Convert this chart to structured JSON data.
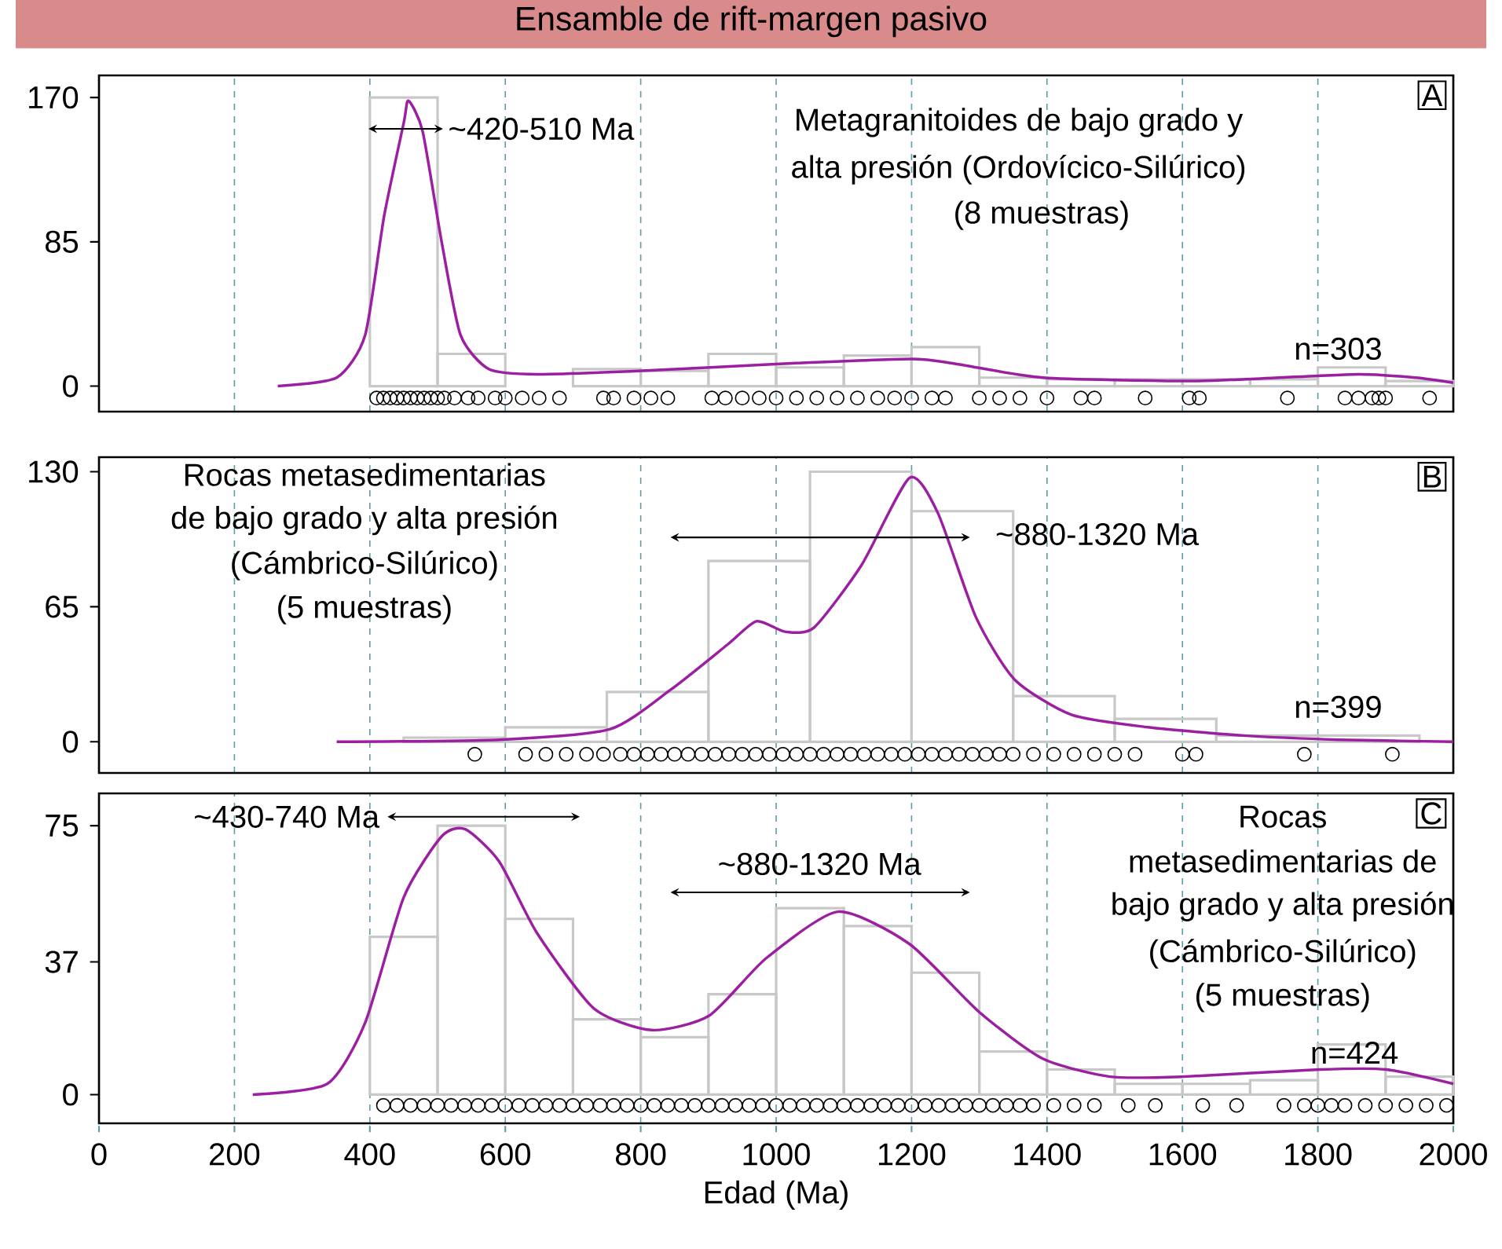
{
  "chart_data": [
    {
      "type": "histogram",
      "title": "Ensamble de rift-margen pasivo",
      "color": "#c8c8c8",
      "bins": [
        400,
        500,
        600,
        700,
        800,
        900,
        1000,
        1100,
        1200,
        1300,
        1400,
        1500,
        1600,
        1700,
        1800,
        1900,
        2000
      ],
      "values": [
        170,
        19,
        0,
        10,
        9,
        19,
        11,
        18,
        23,
        5,
        4,
        4,
        4,
        4,
        11,
        3
      ],
      "series": [
        {
          "type": "line",
          "color": "#9b1fa0",
          "x": [
            264,
            351,
            393,
            421,
            450,
            457,
            478,
            506,
            534,
            576,
            647,
            802,
            999,
            1199,
            1267,
            1394,
            1601,
            1690,
            1859,
            1944,
            2000
          ],
          "values": [
            0,
            5,
            30,
            100,
            155,
            168,
            150,
            85,
            30,
            10,
            7,
            9,
            13,
            16,
            13,
            5,
            3,
            4,
            7,
            5,
            2
          ]
        },
        {
          "type": "scatter",
          "color": "#000000",
          "x": [
            410,
            420,
            430,
            440,
            450,
            460,
            470,
            480,
            490,
            500,
            510,
            525,
            545,
            560,
            585,
            600,
            625,
            650,
            680,
            745,
            760,
            790,
            815,
            840,
            905,
            925,
            950,
            975,
            1000,
            1030,
            1060,
            1090,
            1120,
            1150,
            1175,
            1200,
            1230,
            1250,
            1300,
            1330,
            1360,
            1400,
            1450,
            1470,
            1545,
            1610,
            1625,
            1755,
            1840,
            1860,
            1880,
            1890,
            1900,
            1965
          ],
          "values": [
            -7,
            -7,
            -7,
            -7,
            -7,
            -7,
            -7,
            -7,
            -7,
            -7,
            -7,
            -7,
            -7,
            -7,
            -7,
            -7,
            -7,
            -7,
            -7,
            -7,
            -7,
            -7,
            -7,
            -7,
            -7,
            -7,
            -7,
            -7,
            -7,
            -7,
            -7,
            -7,
            -7,
            -7,
            -7,
            -7,
            -7,
            -7,
            -7,
            -7,
            -7,
            -7,
            -7,
            -7,
            -7,
            -7,
            -7,
            -7,
            -7,
            -7,
            -7,
            -7,
            -7,
            -7
          ]
        }
      ],
      "xlim": [
        0,
        2000
      ],
      "xticks": [
        0,
        200,
        400,
        600,
        800,
        1000,
        1200,
        1400,
        1600,
        1800,
        2000
      ],
      "ylim": [
        -15,
        183
      ],
      "yticks": [
        0,
        85,
        170
      ],
      "grid": "x",
      "tick_labels": "y",
      "annotations": [
        "A",
        "~420-510 Ma",
        "Metagranitoides de bajo grado y",
        "alta presión (Ordovícico-Silúrico)",
        "(8 muestras)",
        "n=303"
      ]
    },
    {
      "type": "histogram",
      "color": "#c8c8c8",
      "bins": [
        450,
        600,
        750,
        900,
        1050,
        1200,
        1350,
        1500,
        1650,
        1800,
        1950
      ],
      "values": [
        2,
        7,
        24,
        87,
        130,
        111,
        22,
        11,
        3,
        3
      ],
      "series": [
        {
          "type": "line",
          "color": "#9b1fa0",
          "x": [
            351,
            591,
            754,
            844,
            929,
            971,
            1013,
            1056,
            1126,
            1197,
            1239,
            1295,
            1352,
            1436,
            1549,
            1690,
            1831,
            2000
          ],
          "values": [
            0,
            1,
            6,
            25,
            47,
            58,
            53,
            55,
            85,
            127,
            110,
            60,
            30,
            13,
            7,
            3,
            1,
            0
          ]
        },
        {
          "type": "scatter",
          "color": "#000000",
          "x": [
            555,
            630,
            660,
            690,
            720,
            745,
            770,
            790,
            810,
            830,
            850,
            870,
            890,
            910,
            930,
            950,
            970,
            990,
            1010,
            1030,
            1050,
            1070,
            1090,
            1110,
            1130,
            1150,
            1170,
            1190,
            1210,
            1230,
            1250,
            1270,
            1290,
            1310,
            1330,
            1350,
            1380,
            1410,
            1440,
            1470,
            1500,
            1530,
            1600,
            1620,
            1780,
            1910
          ],
          "values": [
            -6,
            -6,
            -6,
            -6,
            -6,
            -6,
            -6,
            -6,
            -6,
            -6,
            -6,
            -6,
            -6,
            -6,
            -6,
            -6,
            -6,
            -6,
            -6,
            -6,
            -6,
            -6,
            -6,
            -6,
            -6,
            -6,
            -6,
            -6,
            -6,
            -6,
            -6,
            -6,
            -6,
            -6,
            -6,
            -6,
            -6,
            -6,
            -6,
            -6,
            -6,
            -6,
            -6,
            -6,
            -6,
            -6
          ]
        }
      ],
      "xlim": [
        0,
        2000
      ],
      "xticks": [
        0,
        200,
        400,
        600,
        800,
        1000,
        1200,
        1400,
        1600,
        1800,
        2000
      ],
      "ylim": [
        -15,
        137
      ],
      "yticks": [
        0,
        65,
        130
      ],
      "grid": "x",
      "tick_labels": "y",
      "annotations": [
        "B",
        "Rocas metasedimentarias",
        "de bajo grado y alta presión",
        "(Cámbrico-Silúrico)",
        "(5 muestras)",
        "~880-1320 Ma",
        "n=399"
      ]
    },
    {
      "type": "histogram",
      "color": "#c8c8c8",
      "xlabel": "Edad (Ma)",
      "bins": [
        400,
        500,
        600,
        700,
        800,
        900,
        1000,
        1100,
        1200,
        1300,
        1400,
        1500,
        1600,
        1700,
        1800,
        1900,
        2000
      ],
      "values": [
        44,
        75,
        49,
        21,
        16,
        28,
        52,
        47,
        34,
        12,
        7,
        3,
        3,
        4,
        14,
        5
      ],
      "series": [
        {
          "type": "line",
          "color": "#9b1fa0",
          "x": [
            227,
            337,
            393,
            450,
            506,
            541,
            591,
            647,
            731,
            816,
            901,
            985,
            1091,
            1197,
            1300,
            1394,
            1493,
            1601,
            1803,
            1901,
            2000
          ],
          "values": [
            0,
            3,
            20,
            55,
            72,
            74,
            65,
            45,
            24,
            18,
            22,
            38,
            51,
            42,
            23,
            10,
            5,
            5,
            7,
            7,
            3
          ]
        },
        {
          "type": "scatter",
          "color": "#000000",
          "x": [
            420,
            440,
            460,
            480,
            500,
            520,
            540,
            560,
            580,
            600,
            620,
            640,
            660,
            680,
            700,
            720,
            740,
            760,
            780,
            800,
            820,
            840,
            860,
            880,
            900,
            920,
            940,
            960,
            980,
            1000,
            1020,
            1040,
            1060,
            1080,
            1100,
            1120,
            1140,
            1160,
            1180,
            1200,
            1220,
            1240,
            1260,
            1280,
            1300,
            1320,
            1340,
            1360,
            1380,
            1410,
            1440,
            1470,
            1520,
            1560,
            1630,
            1680,
            1750,
            1780,
            1800,
            1820,
            1840,
            1870,
            1900,
            1930,
            1960,
            1990
          ],
          "values": [
            -3,
            -3,
            -3,
            -3,
            -3,
            -3,
            -3,
            -3,
            -3,
            -3,
            -3,
            -3,
            -3,
            -3,
            -3,
            -3,
            -3,
            -3,
            -3,
            -3,
            -3,
            -3,
            -3,
            -3,
            -3,
            -3,
            -3,
            -3,
            -3,
            -3,
            -3,
            -3,
            -3,
            -3,
            -3,
            -3,
            -3,
            -3,
            -3,
            -3,
            -3,
            -3,
            -3,
            -3,
            -3,
            -3,
            -3,
            -3,
            -3,
            -3,
            -3,
            -3,
            -3,
            -3,
            -3,
            -3,
            -3,
            -3,
            -3,
            -3,
            -3,
            -3,
            -3,
            -3,
            -3,
            -3
          ]
        }
      ],
      "xlim": [
        0,
        2000
      ],
      "xticks": [
        0,
        200,
        400,
        600,
        800,
        1000,
        1200,
        1400,
        1600,
        1800,
        2000
      ],
      "ylim": [
        -8,
        84
      ],
      "yticks": [
        0,
        37,
        75
      ],
      "grid": "x",
      "annotations": [
        "C",
        "~430-740 Ma",
        "~880-1320 Ma",
        "Rocas",
        "metasedimentarias de",
        "bajo grado y alta presión",
        "(Cámbrico-Silúrico)",
        "(5 muestras)",
        "n=424"
      ]
    }
  ]
}
